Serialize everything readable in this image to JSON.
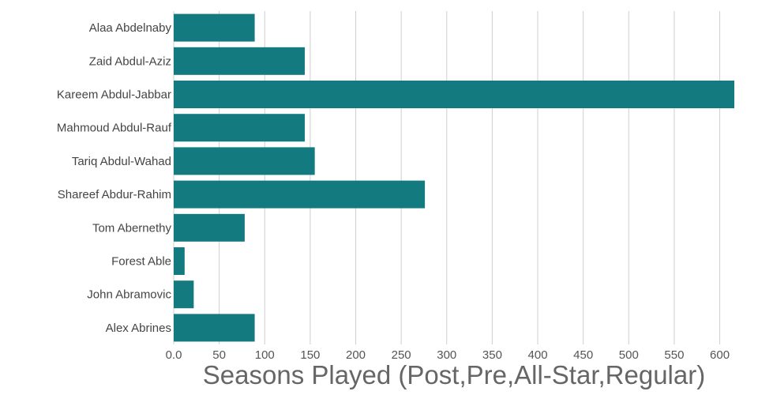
{
  "chart_data": {
    "type": "bar",
    "orientation": "horizontal",
    "categories": [
      "Alaa Abdelnaby",
      "Zaid Abdul-Aziz",
      "Kareem Abdul-Jabbar",
      "Mahmoud Abdul-Rauf",
      "Tariq Abdul-Wahad",
      "Shareef Abdur-Rahim",
      "Tom Abernethy",
      "Forest Able",
      "John Abramovic",
      "Alex Abrines"
    ],
    "values": [
      89,
      144,
      616,
      144,
      155,
      276,
      78,
      12,
      22,
      89
    ],
    "xlabel": "Seasons Played (Post,Pre,All-Star,Regular)",
    "ylabel": "",
    "xlim": [
      0,
      616
    ],
    "xticks": [
      0,
      50,
      100,
      150,
      200,
      250,
      300,
      350,
      400,
      450,
      500,
      550,
      600
    ],
    "xtick_labels": [
      "0.0",
      "50",
      "100",
      "150",
      "200",
      "250",
      "300",
      "350",
      "400",
      "450",
      "500",
      "550",
      "600"
    ],
    "grid": "vertical",
    "bar_color": "#137a7f",
    "gridline_color": "#cfcfcf"
  }
}
